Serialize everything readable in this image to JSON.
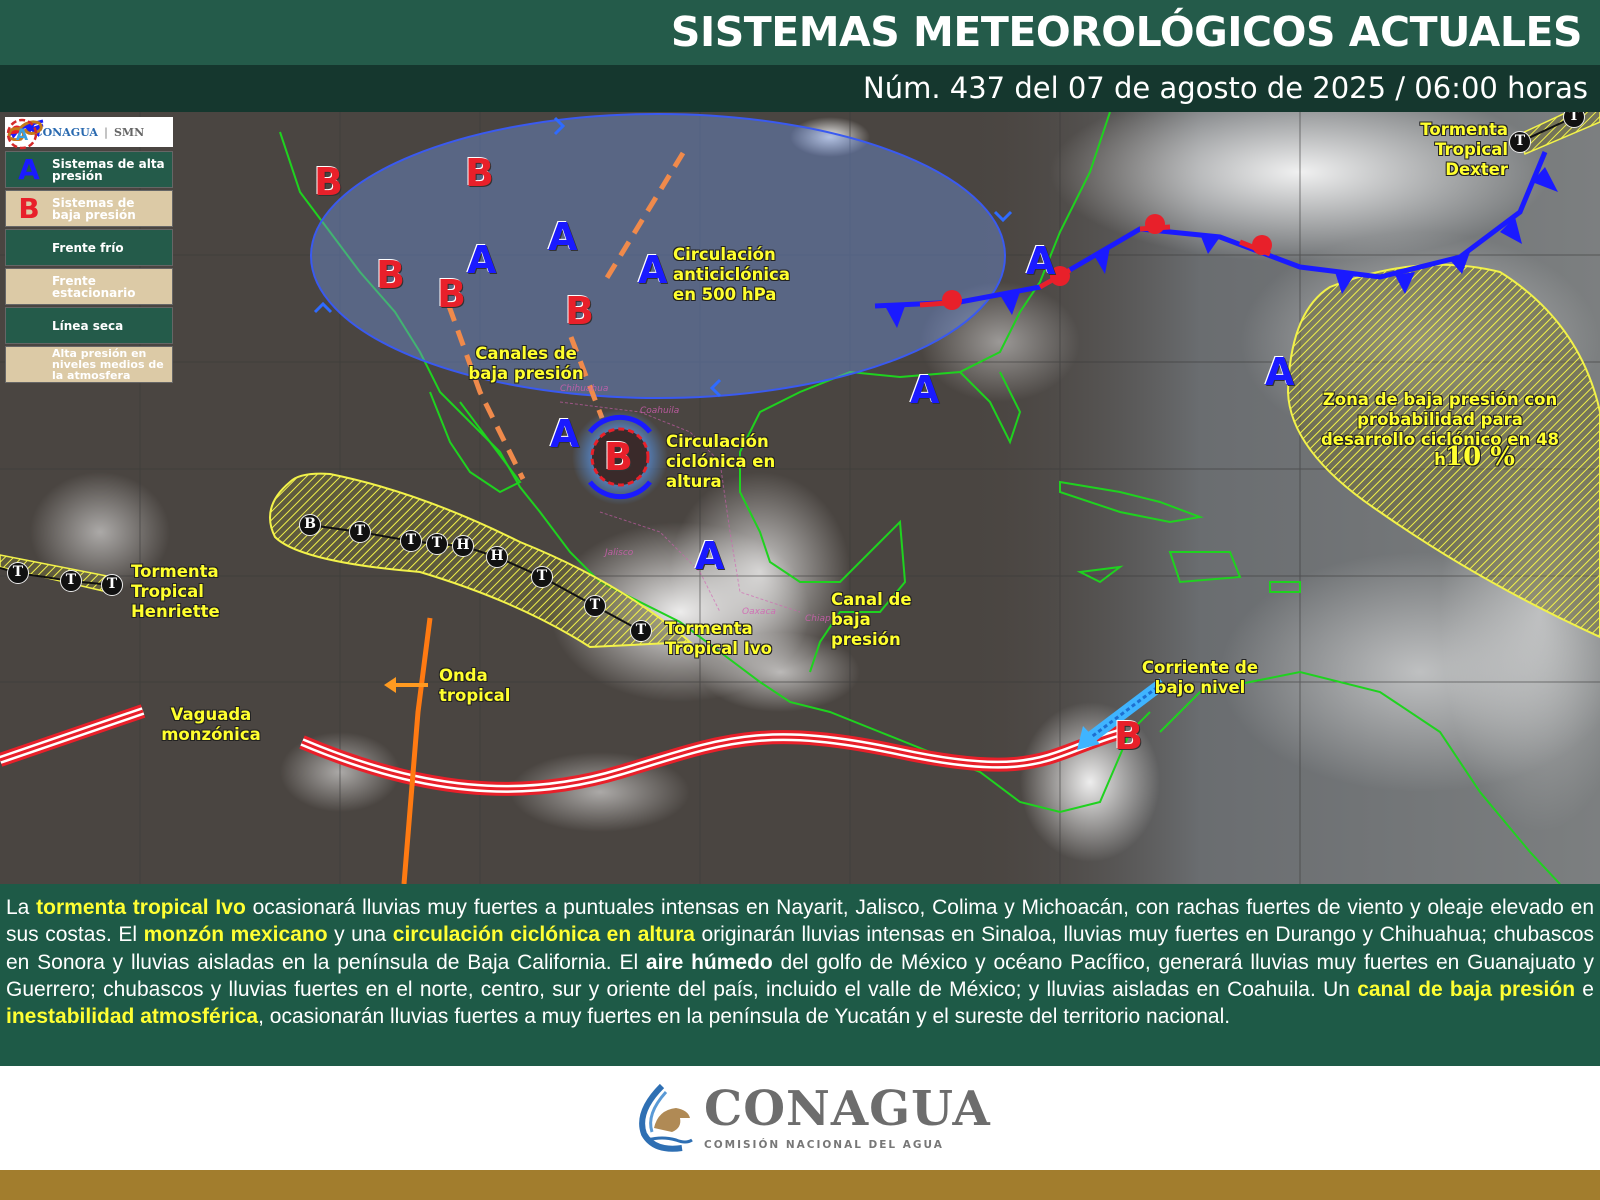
{
  "header": {
    "title": "SISTEMAS METEOROLÓGICOS ACTUALES",
    "subtitle": "Núm. 437 del 07 de agosto de 2025 / 06:00 horas"
  },
  "legend": {
    "logos": [
      "CONAGUA",
      "SMN"
    ],
    "items": [
      {
        "icon": "high-pressure-A",
        "label": "Sistemas de alta presión"
      },
      {
        "icon": "low-pressure-B",
        "label": "Sistemas de baja presión"
      },
      {
        "icon": "cold-front",
        "label": "Frente frío"
      },
      {
        "icon": "stationary-front",
        "label": "Frente estacionario"
      },
      {
        "icon": "dry-line",
        "label": "Línea seca"
      },
      {
        "icon": "mid-level-high",
        "label": "Alta presión en niveles medios de la atmosfera"
      }
    ]
  },
  "map": {
    "high_symbol": "A",
    "low_symbol": "B",
    "track_symbols": [
      "B",
      "T",
      "T",
      "T",
      "H",
      "H",
      "T",
      "T",
      "T"
    ],
    "henriette_symbols": [
      "T",
      "T",
      "T"
    ],
    "dexter_symbols": [
      "T",
      "T"
    ],
    "labels": {
      "anticyclone": "Circulación anticiclónica en 500 hPa",
      "troughs": "Canales de baja presión",
      "cyclonic": "Circulación ciclónica en altura",
      "henriette": "Tormenta Tropical Henriette",
      "ivo": "Tormenta Tropical Ivo",
      "wave": "Onda tropical",
      "monsoon": "Vaguada monzónica",
      "trough_channel": "Canal de baja presión",
      "low_level_jet": "Corriente de bajo nivel",
      "dexter": "Tormenta Tropical Dexter",
      "zone": "Zona de baja presión con probabilidad para desarrollo ciclónico en 48 h",
      "zone_probability": "10 %"
    },
    "states": [
      "Chihuahua",
      "Coahuila",
      "Jalisco",
      "Oaxaca",
      "Chiapas"
    ],
    "colors": {
      "high": "#1a1aff",
      "low": "#e8202a",
      "label": "#ffff2e",
      "coast": "#1fd21f",
      "zone": "#f2f24a",
      "front": "#1a1aff",
      "trough": "#f08a4b"
    }
  },
  "bulletin": {
    "segments": [
      {
        "text": "La ",
        "style": "normal"
      },
      {
        "text": "tormenta tropical Ivo",
        "style": "highlight"
      },
      {
        "text": " ocasionará lluvias muy fuertes a puntuales intensas en Nayarit, Jalisco, Colima y Michoacán, con rachas fuertes de viento y oleaje elevado en sus costas. El ",
        "style": "normal"
      },
      {
        "text": "monzón mexicano",
        "style": "highlight"
      },
      {
        "text": " y una ",
        "style": "normal"
      },
      {
        "text": "circulación ciclónica en altura",
        "style": "highlight"
      },
      {
        "text": " originarán lluvias intensas en Sinaloa, lluvias muy fuertes en Durango y Chihuahua; chubascos en Sonora y lluvias aisladas en la península de Baja California. El ",
        "style": "normal"
      },
      {
        "text": "aire húmedo",
        "style": "bold"
      },
      {
        "text": " del golfo de México y océano Pacífico, generará lluvias muy fuertes en Guanajuato y Guerrero; chubascos y lluvias fuertes en el norte, centro, sur y oriente del país, incluido el valle de México; y lluvias aisladas en Coahuila. Un ",
        "style": "normal"
      },
      {
        "text": "canal de baja presión",
        "style": "highlight"
      },
      {
        "text": " e ",
        "style": "normal"
      },
      {
        "text": "inestabilidad atmosférica",
        "style": "highlight"
      },
      {
        "text": ", ocasionarán lluvias fuertes a muy fuertes en la península de Yucatán y el sureste del territorio nacional.",
        "style": "normal"
      }
    ]
  },
  "footer": {
    "logo_name": "CONAGUA",
    "logo_subtitle": "COMISIÓN NACIONAL DEL AGUA"
  }
}
